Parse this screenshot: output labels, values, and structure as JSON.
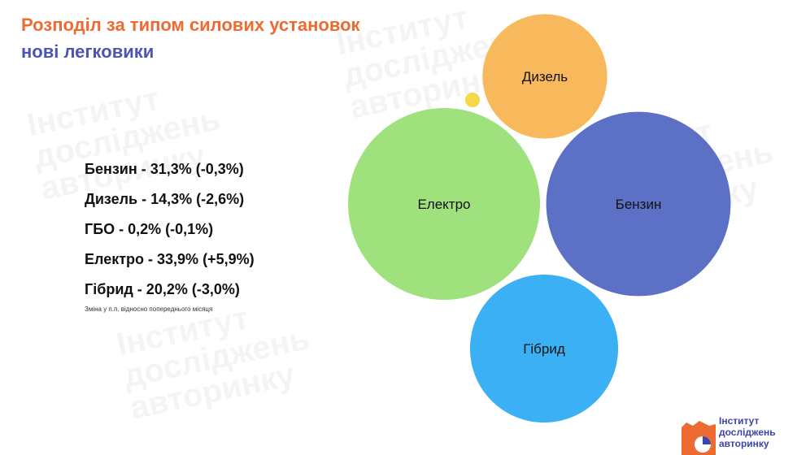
{
  "title": "Розподіл за типом силових установок",
  "subtitle": "нові легковики",
  "stats": [
    "Бензин - 31,3% (-0,3%)",
    "Дизель - 14,3% (-2,6%)",
    "ГБО - 0,2% (-0,1%)",
    "Електро - 33,9% (+5,9%)",
    "Гібрид - 20,2% (-3,0%)"
  ],
  "footnote": "Зміна у п.п. відносно попереднього місяця",
  "logo": {
    "lines": [
      "Інститут",
      "досліджень",
      "авторинку"
    ],
    "colors": {
      "orange": "#ee6a33",
      "blue": "#3b46a8"
    }
  },
  "chart_data": {
    "type": "bubble",
    "title": "Розподіл за типом силових установок",
    "subtitle": "нові легковики",
    "series": [
      {
        "category": "Бензин",
        "value": 31.3,
        "change": -0.3,
        "color": "#5c70c6",
        "label": "Бензин"
      },
      {
        "category": "Дизель",
        "value": 14.3,
        "change": -2.6,
        "color": "#f8b85c",
        "label": "Дизель"
      },
      {
        "category": "ГБО",
        "value": 0.2,
        "change": -0.1,
        "color": "#f6d94b",
        "label": ""
      },
      {
        "category": "Електро",
        "value": 33.9,
        "change": 5.9,
        "color": "#9ee17d",
        "label": "Електро"
      },
      {
        "category": "Гібрид",
        "value": 20.2,
        "change": -3.0,
        "color": "#3bb0f5",
        "label": "Гібрид"
      }
    ]
  }
}
